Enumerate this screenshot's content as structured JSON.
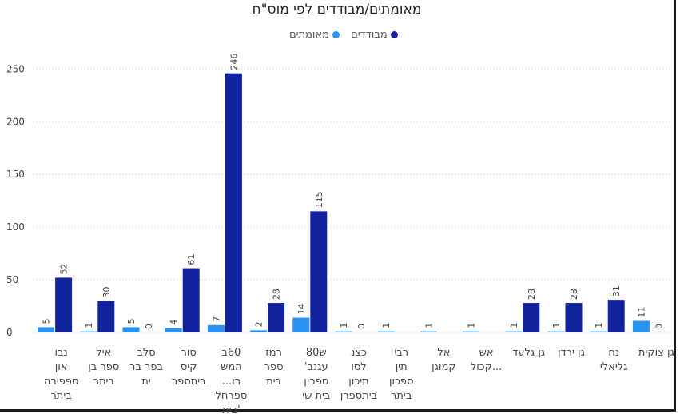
{
  "title": "מאומתים/מבודדים לפי מוס\"ח",
  "colors": {
    "confirmed": "#2a93f2",
    "isolated": "#12239e"
  },
  "chart_data": {
    "type": "bar",
    "title": "מאומתים/מבודדים לפי מוס\"ח",
    "xlabel": "",
    "ylabel": "",
    "ylim": [
      0,
      270
    ],
    "yticks": [
      0,
      50,
      100,
      150,
      200,
      250
    ],
    "grid": true,
    "legend_position": "top",
    "categories": [
      [
        "נבו",
        "און",
        "ספפירה",
        "ביתר"
      ],
      [
        "איל",
        "ספר בן",
        "ביתר"
      ],
      [
        "סלב",
        "בפר בר",
        "ית"
      ],
      [
        "סור",
        "קיס",
        "ביתספר"
      ],
      [
        "60ב",
        "המש",
        "רו...",
        "ספרחל",
        "'בית"
      ],
      [
        "רמז",
        "ספר",
        "בית"
      ],
      [
        "ש80",
        "עגנב'",
        "ספרון",
        "בית שי"
      ],
      [
        "כצנ",
        "לסו",
        "תיכון",
        "ביתספרן"
      ],
      [
        "רבי",
        "תין",
        "ספכון",
        "ביתר"
      ],
      [
        "אל",
        "קמוגן"
      ],
      [
        "אש",
        "...קכול"
      ],
      [
        "גן גלעד"
      ],
      [
        "גן ירדן"
      ],
      [
        "נח",
        "גליאלי"
      ],
      [
        "גן צוקית"
      ]
    ],
    "series": [
      {
        "name": "מאומתים",
        "values": [
          5,
          1,
          5,
          4,
          7,
          2,
          14,
          1,
          1,
          1,
          1,
          1,
          1,
          1,
          11
        ],
        "labels": [
          "5",
          "1",
          "5",
          "4",
          "7",
          "2",
          "14",
          "1",
          "1",
          "1",
          "1",
          "1",
          "1",
          "1",
          "11"
        ]
      },
      {
        "name": "מבודדים",
        "values": [
          52,
          30,
          0,
          61,
          246,
          28,
          115,
          0,
          0,
          0,
          0,
          28,
          28,
          31,
          0
        ],
        "labels": [
          "52",
          "30",
          "0",
          "61",
          "246",
          "28",
          "115",
          "0",
          "",
          "",
          "",
          "28",
          "28",
          "31",
          "0"
        ]
      }
    ]
  }
}
